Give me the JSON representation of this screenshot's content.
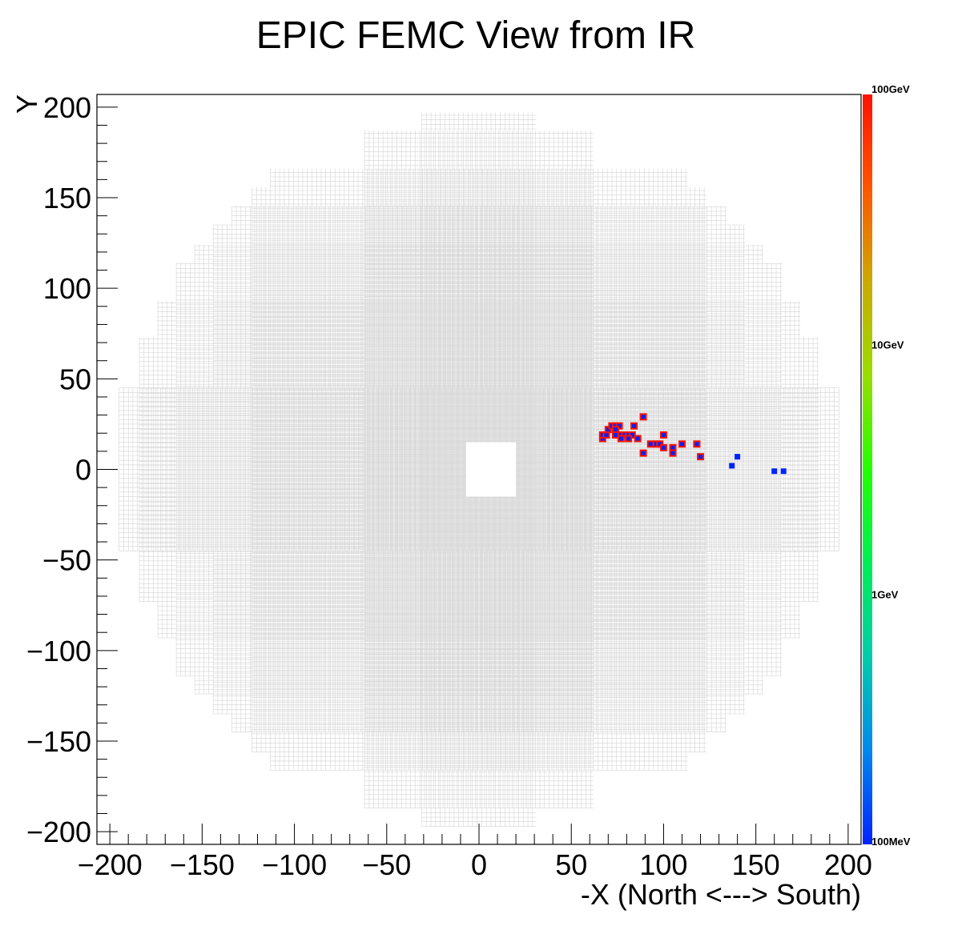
{
  "chart_data": {
    "type": "heatmap",
    "title": "EPIC FEMC View from IR",
    "xlabel": "-X (North <---> South)",
    "ylabel": "Y",
    "xlim": [
      -207,
      207
    ],
    "ylim": [
      -207,
      207
    ],
    "x_ticks": [
      -200,
      -150,
      -100,
      -50,
      0,
      50,
      100,
      150,
      200
    ],
    "y_ticks": [
      -200,
      -150,
      -100,
      -50,
      0,
      50,
      100,
      150,
      200
    ],
    "colorbar": {
      "scale": "log",
      "min_gev": 0.1,
      "max_gev": 100,
      "labels": [
        {
          "text": "100GeV",
          "gev": 100
        },
        {
          "text": "10GeV",
          "gev": 10
        },
        {
          "text": "1GeV",
          "gev": 1
        },
        {
          "text": "100MeV",
          "gev": 0.1
        }
      ],
      "palette": [
        "#0022ff",
        "#0088ee",
        "#00ccaa",
        "#00ee55",
        "#22ff00",
        "#99dd00",
        "#ccaa00",
        "#ff5500",
        "#ff1100"
      ]
    },
    "detector": {
      "outline_color": "#d4d4d4",
      "beam_hole": {
        "x": [
          -7,
          20
        ],
        "y": [
          -15,
          15
        ]
      },
      "rows": [
        {
          "y": [
            -197,
            197
          ],
          "x": [
            -31,
            31
          ]
        },
        {
          "y": [
            -187,
            187
          ],
          "x": [
            -62,
            62
          ]
        },
        {
          "y": [
            -166,
            166
          ],
          "x": [
            -113,
            113
          ]
        },
        {
          "y": [
            -156,
            156
          ],
          "x": [
            -123,
            123
          ]
        },
        {
          "y": [
            -145,
            145
          ],
          "x": [
            -134,
            134
          ]
        },
        {
          "y": [
            -135,
            135
          ],
          "x": [
            -144,
            144
          ]
        },
        {
          "y": [
            -124,
            124
          ],
          "x": [
            -154,
            154
          ]
        },
        {
          "y": [
            -114,
            114
          ],
          "x": [
            -164,
            164
          ]
        },
        {
          "y": [
            -93,
            93
          ],
          "x": [
            -174,
            174
          ]
        },
        {
          "y": [
            -73,
            73
          ],
          "x": [
            -184,
            184
          ]
        },
        {
          "y": [
            -45,
            45
          ],
          "x": [
            -195,
            195
          ]
        }
      ]
    },
    "hits": [
      {
        "x": 67,
        "y": 17,
        "gev": 100
      },
      {
        "x": 67,
        "y": 19,
        "gev": 100
      },
      {
        "x": 69,
        "y": 19,
        "gev": 100
      },
      {
        "x": 70,
        "y": 22,
        "gev": 100
      },
      {
        "x": 72,
        "y": 24,
        "gev": 100
      },
      {
        "x": 74,
        "y": 24,
        "gev": 100
      },
      {
        "x": 76,
        "y": 24,
        "gev": 100
      },
      {
        "x": 74,
        "y": 22,
        "gev": 100
      },
      {
        "x": 74,
        "y": 19,
        "gev": 100
      },
      {
        "x": 77,
        "y": 19,
        "gev": 100
      },
      {
        "x": 79,
        "y": 19,
        "gev": 100
      },
      {
        "x": 81,
        "y": 19,
        "gev": 100
      },
      {
        "x": 83,
        "y": 19,
        "gev": 100
      },
      {
        "x": 77,
        "y": 17,
        "gev": 100
      },
      {
        "x": 81,
        "y": 17,
        "gev": 100
      },
      {
        "x": 84,
        "y": 24,
        "gev": 100
      },
      {
        "x": 86,
        "y": 17,
        "gev": 100
      },
      {
        "x": 89,
        "y": 29,
        "gev": 100
      },
      {
        "x": 89,
        "y": 9,
        "gev": 100
      },
      {
        "x": 93,
        "y": 14,
        "gev": 100
      },
      {
        "x": 96,
        "y": 14,
        "gev": 100
      },
      {
        "x": 98,
        "y": 14,
        "gev": 100
      },
      {
        "x": 100,
        "y": 19,
        "gev": 100
      },
      {
        "x": 100,
        "y": 12,
        "gev": 100
      },
      {
        "x": 105,
        "y": 12,
        "gev": 100
      },
      {
        "x": 105,
        "y": 9,
        "gev": 100
      },
      {
        "x": 110,
        "y": 14,
        "gev": 100
      },
      {
        "x": 118,
        "y": 14,
        "gev": 100
      },
      {
        "x": 120,
        "y": 7,
        "gev": 100
      },
      {
        "x": 140,
        "y": 7,
        "gev": 0.1
      },
      {
        "x": 137,
        "y": 2,
        "gev": 0.1
      },
      {
        "x": 160,
        "y": -1,
        "gev": 0.1
      },
      {
        "x": 165,
        "y": -1,
        "gev": 0.1
      }
    ]
  }
}
